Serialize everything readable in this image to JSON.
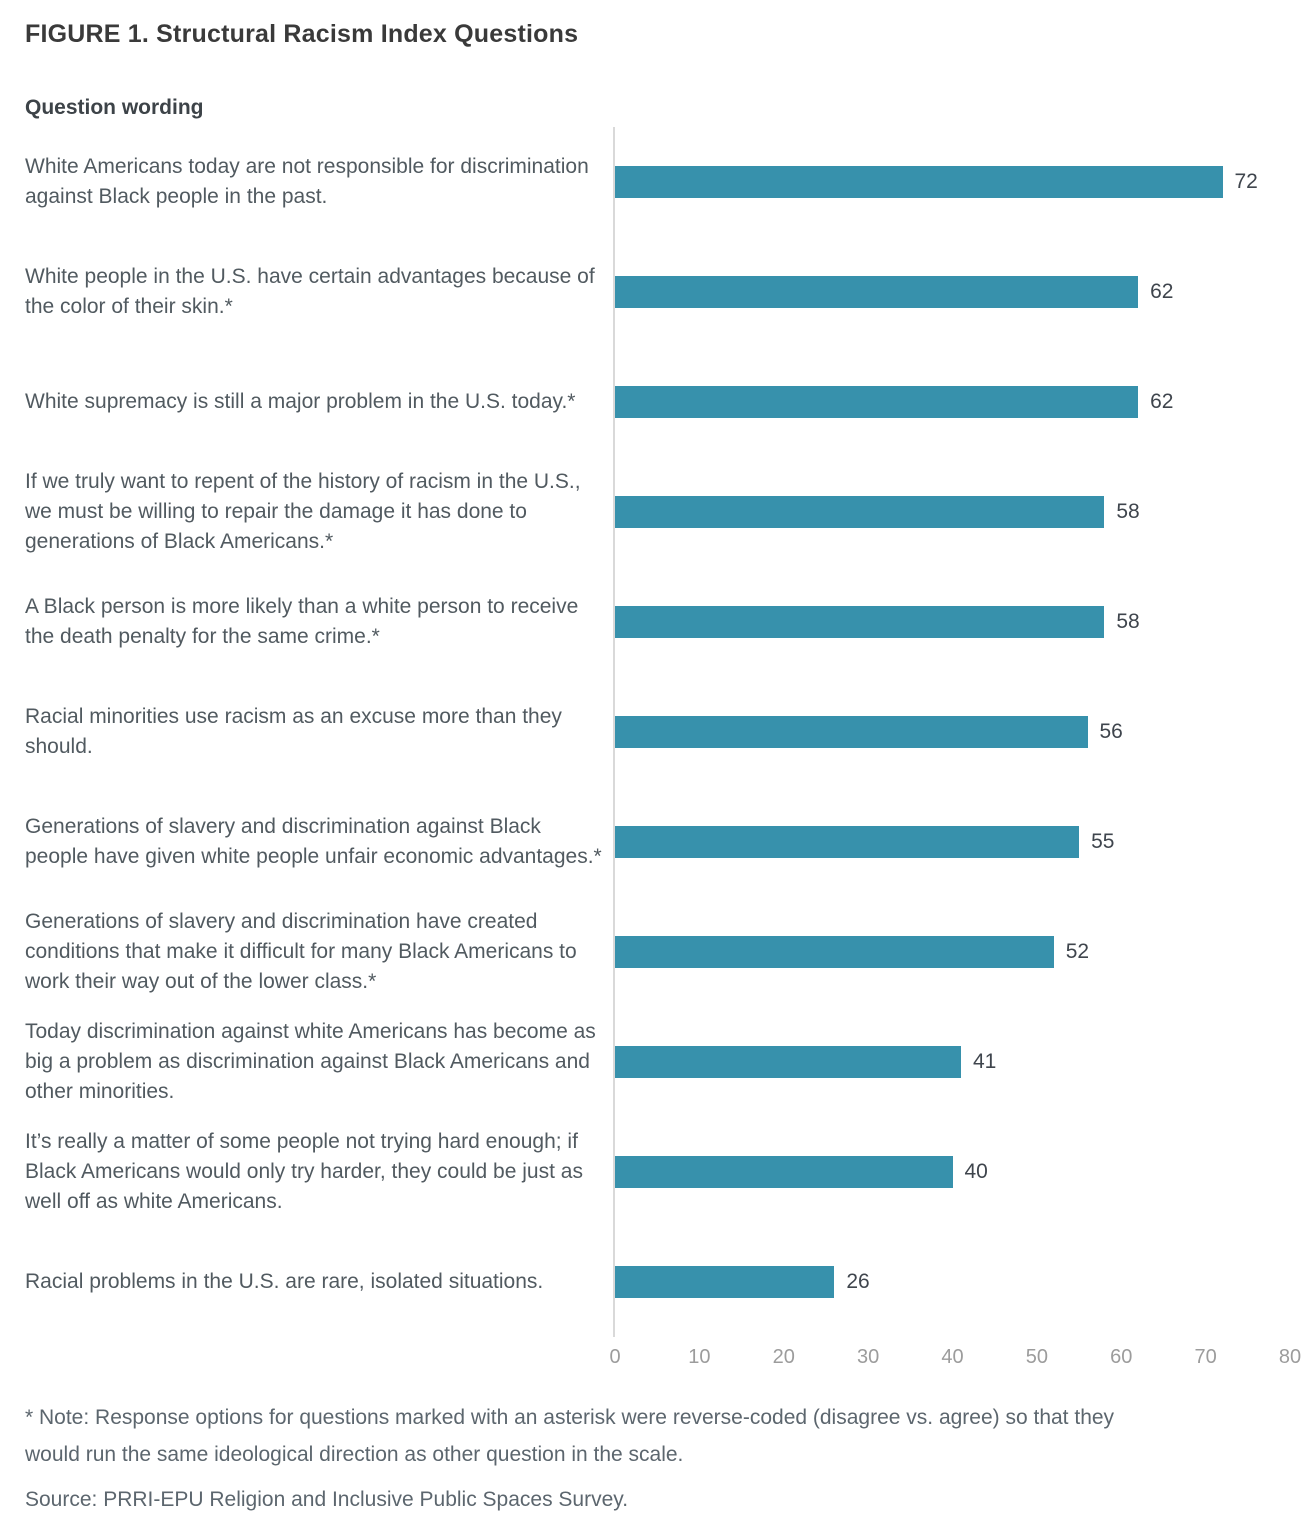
{
  "page": {
    "title": "FIGURE 1. Structural Racism Index Questions",
    "column_header": "Question wording",
    "note": "* Note: Response options for questions marked with an asterisk were reverse-coded (disagree vs. agree) so that they would run the same ideological direction as other question in the scale.",
    "source": "Source: PRRI-EPU Religion and Inclusive Public Spaces Survey."
  },
  "chart_data": {
    "type": "bar",
    "orientation": "horizontal",
    "title": "FIGURE 1. Structural Racism Index Questions",
    "xlabel": "",
    "ylabel": "Question wording",
    "xlim": [
      0,
      80
    ],
    "x_ticks": [
      0,
      10,
      20,
      30,
      40,
      50,
      60,
      70,
      80
    ],
    "grid": false,
    "legend": "none",
    "bar_color": "#3791ac",
    "categories": [
      "White Americans today are not responsible for discrimination against Black people in the past.",
      "White people in the U.S. have certain advantages because of the color of their skin.*",
      "White supremacy is still a major problem in the U.S. today.*",
      "If we truly want to repent of the history of racism in the U.S., we must be willing to repair the damage it has done to generations of Black Americans.*",
      "A Black person is more likely than a white person to receive the death penalty for the same crime.*",
      "Racial minorities use racism as an excuse more than they should.",
      "Generations of slavery and discrimination against Black people have given white people unfair economic advantages.*",
      "Generations of slavery and discrimination have created conditions that make it difficult for many Black Americans to work their way out of the lower class.*",
      "Today discrimination against white Americans has become as big a problem as discrimination against Black Americans and other minorities.",
      "It’s really a matter of some people not trying hard enough; if Black Americans would only try harder, they could be just as well off as white Americans.",
      "Racial problems in the U.S. are rare, isolated situations."
    ],
    "values": [
      72,
      62,
      62,
      58,
      58,
      56,
      55,
      52,
      41,
      40,
      26
    ]
  },
  "colors": {
    "bar": "#3791ac",
    "axis_line": "#d9d9d9",
    "title_text": "#3a3a3a",
    "question_text": "#515a60",
    "value_text": "#3f454d",
    "tick_text": "#9c9c9c",
    "note_text": "#5c666e",
    "background": "#ffffff"
  }
}
